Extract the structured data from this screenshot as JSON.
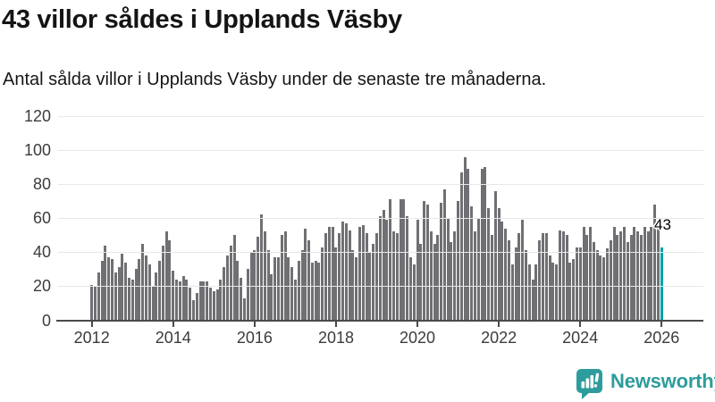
{
  "header": {
    "title": "43 villor såldes i Upplands Väsby",
    "subtitle": "Antal sålda villor i Upplands Väsby under de senaste tre månaderna."
  },
  "chart_data": {
    "type": "bar",
    "title": "43 villor såldes i Upplands Väsby",
    "subtitle": "Antal sålda villor i Upplands Väsby under de senaste tre månaderna.",
    "x_start_month": "2012-01",
    "x_frequency": "monthly",
    "values": [
      21,
      20,
      28,
      35,
      44,
      37,
      36,
      28,
      31,
      39,
      34,
      25,
      24,
      30,
      36,
      45,
      38,
      33,
      20,
      28,
      35,
      44,
      52,
      47,
      29,
      24,
      23,
      26,
      24,
      19,
      12,
      16,
      23,
      23,
      23,
      19,
      17,
      18,
      24,
      31,
      38,
      44,
      50,
      35,
      25,
      13,
      30,
      40,
      41,
      49,
      62,
      52,
      41,
      27,
      37,
      37,
      50,
      52,
      37,
      31,
      24,
      35,
      41,
      54,
      47,
      34,
      35,
      34,
      43,
      51,
      55,
      55,
      43,
      51,
      58,
      57,
      53,
      41,
      37,
      55,
      56,
      51,
      40,
      45,
      51,
      61,
      65,
      59,
      71,
      52,
      51,
      71,
      71,
      61,
      37,
      33,
      59,
      45,
      70,
      68,
      52,
      45,
      50,
      69,
      77,
      60,
      46,
      52,
      70,
      87,
      96,
      89,
      67,
      52,
      60,
      89,
      90,
      66,
      50,
      76,
      66,
      58,
      54,
      47,
      33,
      43,
      51,
      59,
      41,
      33,
      24,
      33,
      47,
      51,
      51,
      38,
      34,
      33,
      53,
      52,
      50,
      34,
      36,
      43,
      43,
      55,
      50,
      55,
      46,
      41,
      38,
      37,
      42,
      47,
      55,
      50,
      52,
      55,
      46,
      50,
      55,
      52,
      50,
      55,
      52,
      55,
      68,
      55,
      43
    ],
    "yticks": [
      0,
      20,
      40,
      60,
      80,
      100,
      120
    ],
    "ylim": [
      0,
      125
    ],
    "xticks": [
      2012,
      2014,
      2016,
      2018,
      2020,
      2022,
      2024,
      2026
    ],
    "grid": "horizontal",
    "legend": "none",
    "bar_color": "#706f73",
    "highlight_color": "#00a2a4",
    "highlight_last_bar": true,
    "annotation": {
      "text": "43",
      "target": "last-bar"
    }
  },
  "footer": {
    "brand": "Newsworthy",
    "brand_color": "#2e9c9c",
    "logo_icon": "bar-chart-speech-bubble-icon"
  }
}
